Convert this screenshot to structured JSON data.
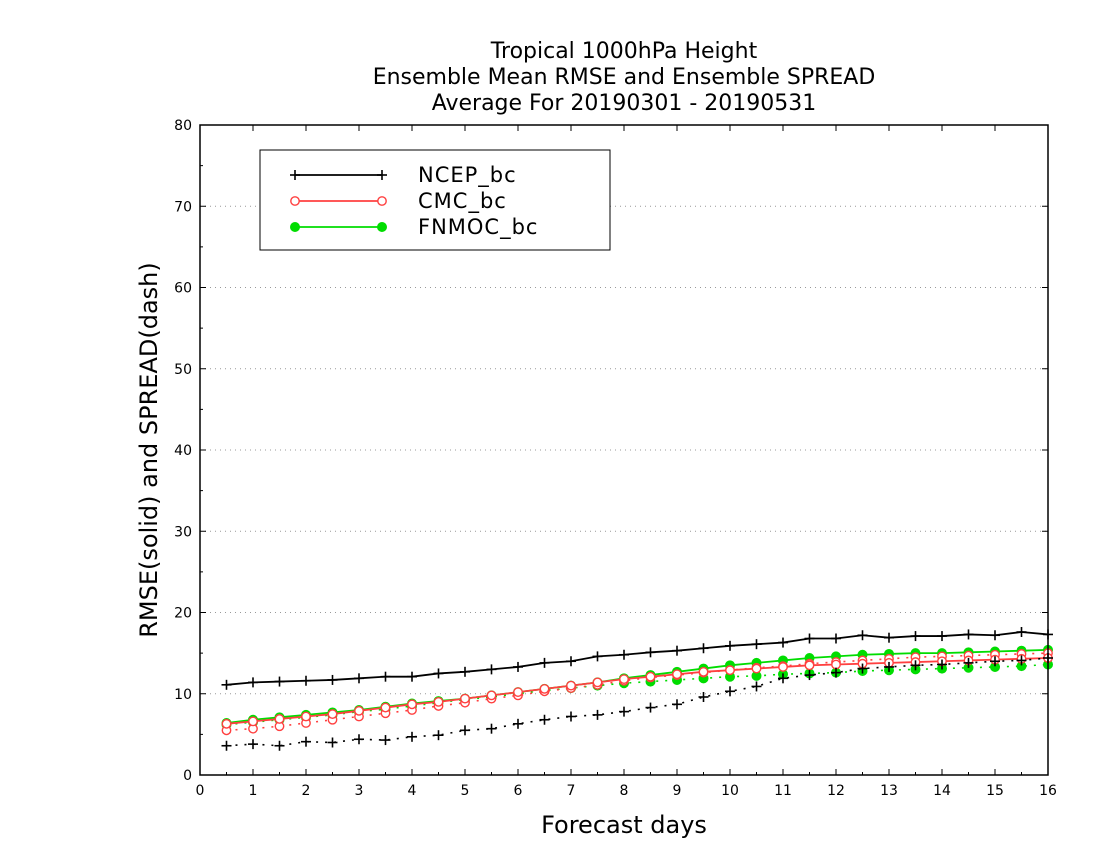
{
  "chart_data": {
    "type": "line",
    "title": [
      "Tropical 1000hPa Height",
      "Ensemble Mean RMSE and Ensemble SPREAD",
      "Average For 20190301 - 20190531"
    ],
    "xlabel": "Forecast days",
    "ylabel": "RMSE(solid) and SPREAD(dash)",
    "xlim": [
      0,
      16
    ],
    "ylim": [
      0,
      80
    ],
    "xticks": [
      "0",
      "1",
      "2",
      "3",
      "4",
      "5",
      "6",
      "7",
      "8",
      "9",
      "10",
      "11",
      "12",
      "13",
      "14",
      "15",
      "16"
    ],
    "yticks": [
      "0",
      "10",
      "20",
      "30",
      "40",
      "50",
      "60",
      "70",
      "80"
    ],
    "grid": "horizontal dotted",
    "legend_position": "top-left",
    "x": [
      0.5,
      1,
      1.5,
      2,
      2.5,
      3,
      3.5,
      4,
      4.5,
      5,
      5.5,
      6,
      6.5,
      7,
      7.5,
      8,
      8.5,
      9,
      9.5,
      10,
      10.5,
      11,
      11.5,
      12,
      12.5,
      13,
      13.5,
      14,
      14.5,
      15,
      15.5,
      16
    ],
    "series": [
      {
        "name": "NCEP_bc",
        "color": "#000000",
        "marker": "plus",
        "rmse": [
          11.1,
          11.4,
          11.5,
          11.6,
          11.7,
          11.9,
          12.1,
          12.1,
          12.5,
          12.7,
          13.0,
          13.3,
          13.8,
          14.0,
          14.6,
          14.8,
          15.1,
          15.3,
          15.6,
          15.9,
          16.1,
          16.3,
          16.8,
          16.8,
          17.2,
          16.9,
          17.1,
          17.1,
          17.3,
          17.2,
          17.6,
          17.3
        ],
        "spread": [
          3.6,
          3.8,
          3.6,
          4.1,
          4.0,
          4.4,
          4.3,
          4.7,
          4.9,
          5.5,
          5.7,
          6.3,
          6.8,
          7.2,
          7.4,
          7.8,
          8.3,
          8.7,
          9.6,
          10.3,
          10.9,
          11.9,
          12.3,
          12.6,
          13.1,
          13.3,
          13.5,
          13.6,
          13.8,
          14.0,
          14.1,
          14.4
        ]
      },
      {
        "name": "CMC_bc",
        "color": "#ff4040",
        "marker": "open-circle",
        "rmse": [
          6.3,
          6.6,
          6.9,
          7.2,
          7.5,
          7.9,
          8.3,
          8.7,
          9.0,
          9.4,
          9.8,
          10.2,
          10.6,
          11.0,
          11.4,
          11.8,
          12.1,
          12.4,
          12.7,
          12.9,
          13.1,
          13.3,
          13.5,
          13.6,
          13.7,
          13.8,
          13.9,
          14.0,
          14.1,
          14.2,
          14.3,
          14.4
        ],
        "spread": [
          5.5,
          5.7,
          6.0,
          6.4,
          6.8,
          7.2,
          7.6,
          8.0,
          8.5,
          8.9,
          9.4,
          9.8,
          10.3,
          10.7,
          11.1,
          11.6,
          12.0,
          12.3,
          12.6,
          12.9,
          13.2,
          13.4,
          13.7,
          13.9,
          14.1,
          14.3,
          14.5,
          14.6,
          14.7,
          14.8,
          14.9,
          15.0
        ]
      },
      {
        "name": "FNMOC_bc",
        "color": "#00dd00",
        "marker": "filled-circle",
        "rmse": [
          6.4,
          6.8,
          7.1,
          7.4,
          7.7,
          8.0,
          8.4,
          8.8,
          9.1,
          9.4,
          9.8,
          10.2,
          10.6,
          11.0,
          11.4,
          11.9,
          12.3,
          12.7,
          13.1,
          13.5,
          13.8,
          14.1,
          14.4,
          14.6,
          14.8,
          14.9,
          15.0,
          15.0,
          15.1,
          15.2,
          15.3,
          15.4
        ],
        "spread": [
          6.2,
          6.5,
          6.8,
          7.1,
          7.4,
          7.8,
          8.1,
          8.5,
          8.9,
          9.3,
          9.6,
          10.0,
          10.4,
          10.7,
          11.0,
          11.3,
          11.5,
          11.7,
          11.9,
          12.1,
          12.2,
          12.4,
          12.5,
          12.6,
          12.8,
          12.9,
          13.0,
          13.1,
          13.2,
          13.3,
          13.4,
          13.6
        ]
      }
    ]
  }
}
